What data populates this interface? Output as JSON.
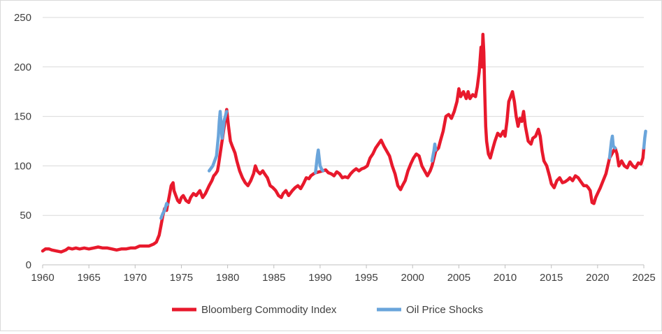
{
  "chart_data": {
    "type": "line",
    "title": "",
    "xlabel": "",
    "ylabel": "",
    "xlim": [
      1960,
      2025.5
    ],
    "ylim": [
      0,
      250
    ],
    "grid": true,
    "legend_position": "bottom",
    "x_ticks": [
      "1960",
      "1965",
      "1970",
      "1975",
      "1980",
      "1985",
      "1990",
      "1995",
      "2000",
      "2005",
      "2010",
      "2015",
      "2020",
      "2025"
    ],
    "y_ticks": [
      "0",
      "50",
      "100",
      "150",
      "200",
      "250"
    ],
    "series": [
      {
        "name": "Bloomberg Commodity Index",
        "color": "#e8192c",
        "points": [
          [
            1960.0,
            14
          ],
          [
            1960.3,
            16
          ],
          [
            1960.7,
            16
          ],
          [
            1961.0,
            15
          ],
          [
            1961.5,
            14
          ],
          [
            1962.0,
            13
          ],
          [
            1962.5,
            15
          ],
          [
            1962.8,
            17
          ],
          [
            1963.2,
            16
          ],
          [
            1963.6,
            17
          ],
          [
            1964.0,
            16
          ],
          [
            1964.5,
            17
          ],
          [
            1965.0,
            16
          ],
          [
            1965.5,
            17
          ],
          [
            1966.0,
            18
          ],
          [
            1966.5,
            17
          ],
          [
            1967.0,
            17
          ],
          [
            1967.5,
            16
          ],
          [
            1968.0,
            15
          ],
          [
            1968.5,
            16
          ],
          [
            1969.0,
            16
          ],
          [
            1969.5,
            17
          ],
          [
            1970.0,
            17
          ],
          [
            1970.5,
            19
          ],
          [
            1971.0,
            19
          ],
          [
            1971.5,
            19
          ],
          [
            1972.0,
            21
          ],
          [
            1972.3,
            23
          ],
          [
            1972.6,
            30
          ],
          [
            1972.8,
            40
          ],
          [
            1973.0,
            50
          ],
          [
            1973.2,
            57
          ],
          [
            1973.4,
            55
          ],
          [
            1973.5,
            60
          ],
          [
            1973.7,
            70
          ],
          [
            1973.9,
            80
          ],
          [
            1974.1,
            83
          ],
          [
            1974.2,
            75
          ],
          [
            1974.4,
            70
          ],
          [
            1974.6,
            65
          ],
          [
            1974.8,
            63
          ],
          [
            1975.0,
            68
          ],
          [
            1975.2,
            70
          ],
          [
            1975.5,
            65
          ],
          [
            1975.8,
            63
          ],
          [
            1976.0,
            68
          ],
          [
            1976.3,
            72
          ],
          [
            1976.6,
            70
          ],
          [
            1977.0,
            75
          ],
          [
            1977.3,
            68
          ],
          [
            1977.6,
            72
          ],
          [
            1978.0,
            80
          ],
          [
            1978.3,
            85
          ],
          [
            1978.5,
            90
          ],
          [
            1978.7,
            92
          ],
          [
            1978.9,
            95
          ],
          [
            1979.0,
            100
          ],
          [
            1979.9,
            157
          ],
          [
            1980.1,
            140
          ],
          [
            1980.3,
            125
          ],
          [
            1980.5,
            120
          ],
          [
            1980.8,
            113
          ],
          [
            1981.0,
            105
          ],
          [
            1981.3,
            95
          ],
          [
            1981.6,
            88
          ],
          [
            1981.9,
            83
          ],
          [
            1982.2,
            80
          ],
          [
            1982.5,
            85
          ],
          [
            1982.8,
            92
          ],
          [
            1983.0,
            100
          ],
          [
            1983.2,
            95
          ],
          [
            1983.5,
            92
          ],
          [
            1983.8,
            95
          ],
          [
            1984.0,
            92
          ],
          [
            1984.3,
            88
          ],
          [
            1984.6,
            80
          ],
          [
            1984.9,
            78
          ],
          [
            1985.2,
            75
          ],
          [
            1985.5,
            70
          ],
          [
            1985.8,
            68
          ],
          [
            1986.0,
            72
          ],
          [
            1986.3,
            75
          ],
          [
            1986.6,
            70
          ],
          [
            1987.0,
            75
          ],
          [
            1987.3,
            78
          ],
          [
            1987.6,
            80
          ],
          [
            1987.9,
            77
          ],
          [
            1988.2,
            82
          ],
          [
            1988.5,
            88
          ],
          [
            1988.8,
            87
          ],
          [
            1989.0,
            90
          ],
          [
            1989.3,
            92
          ],
          [
            1989.5,
            93
          ],
          [
            1990.3,
            95
          ],
          [
            1990.6,
            96
          ],
          [
            1990.9,
            93
          ],
          [
            1991.2,
            92
          ],
          [
            1991.5,
            90
          ],
          [
            1991.8,
            94
          ],
          [
            1992.1,
            92
          ],
          [
            1992.4,
            88
          ],
          [
            1992.7,
            89
          ],
          [
            1993.0,
            88
          ],
          [
            1993.3,
            92
          ],
          [
            1993.6,
            95
          ],
          [
            1993.9,
            97
          ],
          [
            1994.2,
            95
          ],
          [
            1994.5,
            97
          ],
          [
            1994.8,
            98
          ],
          [
            1995.1,
            100
          ],
          [
            1995.4,
            108
          ],
          [
            1995.7,
            112
          ],
          [
            1996.0,
            118
          ],
          [
            1996.3,
            122
          ],
          [
            1996.6,
            126
          ],
          [
            1996.9,
            120
          ],
          [
            1997.2,
            115
          ],
          [
            1997.5,
            110
          ],
          [
            1997.8,
            100
          ],
          [
            1998.1,
            92
          ],
          [
            1998.4,
            80
          ],
          [
            1998.7,
            76
          ],
          [
            1998.9,
            80
          ],
          [
            1999.2,
            85
          ],
          [
            1999.5,
            95
          ],
          [
            1999.8,
            102
          ],
          [
            2000.1,
            108
          ],
          [
            2000.4,
            112
          ],
          [
            2000.7,
            110
          ],
          [
            2001.0,
            100
          ],
          [
            2001.3,
            95
          ],
          [
            2001.6,
            90
          ],
          [
            2001.9,
            95
          ],
          [
            2002.1,
            100
          ],
          [
            2002.5,
            115
          ],
          [
            2002.8,
            118
          ],
          [
            2003.0,
            125
          ],
          [
            2003.3,
            135
          ],
          [
            2003.6,
            150
          ],
          [
            2003.9,
            152
          ],
          [
            2004.2,
            148
          ],
          [
            2004.5,
            155
          ],
          [
            2004.8,
            165
          ],
          [
            2005.0,
            178
          ],
          [
            2005.2,
            170
          ],
          [
            2005.5,
            175
          ],
          [
            2005.8,
            168
          ],
          [
            2006.0,
            175
          ],
          [
            2006.2,
            168
          ],
          [
            2006.5,
            172
          ],
          [
            2006.8,
            170
          ],
          [
            2007.0,
            180
          ],
          [
            2007.2,
            195
          ],
          [
            2007.4,
            220
          ],
          [
            2007.5,
            200
          ],
          [
            2007.6,
            233
          ],
          [
            2007.7,
            215
          ],
          [
            2007.8,
            175
          ],
          [
            2007.9,
            140
          ],
          [
            2008.0,
            125
          ],
          [
            2008.2,
            112
          ],
          [
            2008.4,
            108
          ],
          [
            2008.6,
            115
          ],
          [
            2008.9,
            125
          ],
          [
            2009.2,
            133
          ],
          [
            2009.5,
            130
          ],
          [
            2009.8,
            135
          ],
          [
            2010.0,
            130
          ],
          [
            2010.2,
            145
          ],
          [
            2010.4,
            165
          ],
          [
            2010.6,
            170
          ],
          [
            2010.8,
            175
          ],
          [
            2011.0,
            165
          ],
          [
            2011.2,
            150
          ],
          [
            2011.4,
            140
          ],
          [
            2011.6,
            148
          ],
          [
            2011.8,
            145
          ],
          [
            2012.0,
            155
          ],
          [
            2012.2,
            140
          ],
          [
            2012.5,
            125
          ],
          [
            2012.8,
            122
          ],
          [
            2013.0,
            128
          ],
          [
            2013.3,
            130
          ],
          [
            2013.6,
            137
          ],
          [
            2013.8,
            130
          ],
          [
            2014.0,
            115
          ],
          [
            2014.2,
            105
          ],
          [
            2014.5,
            100
          ],
          [
            2014.8,
            90
          ],
          [
            2015.0,
            82
          ],
          [
            2015.3,
            78
          ],
          [
            2015.6,
            85
          ],
          [
            2015.9,
            88
          ],
          [
            2016.2,
            83
          ],
          [
            2016.5,
            84
          ],
          [
            2016.8,
            86
          ],
          [
            2017.0,
            88
          ],
          [
            2017.3,
            85
          ],
          [
            2017.6,
            90
          ],
          [
            2017.9,
            88
          ],
          [
            2018.2,
            84
          ],
          [
            2018.5,
            80
          ],
          [
            2018.8,
            80
          ],
          [
            2019.0,
            78
          ],
          [
            2019.2,
            75
          ],
          [
            2019.4,
            63
          ],
          [
            2019.6,
            62
          ],
          [
            2019.8,
            68
          ],
          [
            2020.0,
            72
          ],
          [
            2020.3,
            78
          ],
          [
            2020.6,
            85
          ],
          [
            2020.9,
            92
          ],
          [
            2021.1,
            100
          ],
          [
            2021.3,
            108
          ],
          [
            2021.9,
            118
          ],
          [
            2022.1,
            112
          ],
          [
            2022.3,
            100
          ],
          [
            2022.6,
            105
          ],
          [
            2022.9,
            100
          ],
          [
            2023.2,
            98
          ],
          [
            2023.5,
            104
          ],
          [
            2023.8,
            100
          ],
          [
            2024.1,
            98
          ],
          [
            2024.4,
            103
          ],
          [
            2024.7,
            102
          ],
          [
            2024.9,
            108
          ],
          [
            2025.0,
            118
          ]
        ]
      },
      {
        "name": "Oil Price Shocks",
        "color": "#6aa5db",
        "segments": [
          [
            [
              1972.8,
              47
            ],
            [
              1973.0,
              52
            ],
            [
              1973.2,
              55
            ],
            [
              1973.4,
              62
            ],
            [
              1973.5,
              61
            ]
          ],
          [
            [
              1978.0,
              95
            ],
            [
              1978.4,
              100
            ],
            [
              1978.8,
              110
            ],
            [
              1979.0,
              130
            ],
            [
              1979.1,
              145
            ],
            [
              1979.2,
              155
            ],
            [
              1979.3,
              140
            ],
            [
              1979.4,
              128
            ],
            [
              1979.5,
              135
            ],
            [
              1979.6,
              145
            ],
            [
              1979.8,
              152
            ],
            [
              1979.9,
              155
            ]
          ],
          [
            [
              1989.5,
              93
            ],
            [
              1989.7,
              110
            ],
            [
              1989.8,
              116
            ],
            [
              1989.9,
              108
            ],
            [
              1990.0,
              100
            ],
            [
              1990.2,
              96
            ],
            [
              1990.3,
              95
            ]
          ],
          [
            [
              2002.1,
              105
            ],
            [
              2002.3,
              115
            ],
            [
              2002.4,
              122
            ],
            [
              2002.5,
              116
            ]
          ],
          [
            [
              2021.3,
              108
            ],
            [
              2021.5,
              125
            ],
            [
              2021.6,
              130
            ],
            [
              2021.7,
              120
            ],
            [
              2021.9,
              118
            ]
          ],
          [
            [
              2025.0,
              118
            ],
            [
              2025.1,
              128
            ],
            [
              2025.2,
              135
            ]
          ]
        ]
      }
    ]
  }
}
